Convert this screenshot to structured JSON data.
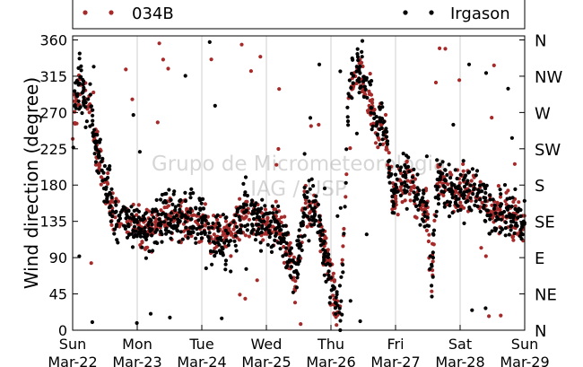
{
  "chart_data": {
    "type": "scatter",
    "title": "",
    "xlabel": "",
    "ylabel": "Wind direction (degree)",
    "ylim": [
      0,
      365
    ],
    "yticks": [
      0,
      45,
      90,
      135,
      180,
      225,
      270,
      315,
      360
    ],
    "xlim": [
      0,
      7
    ],
    "x_unit": "days from Sun Mar-22",
    "xtick_labels": [
      {
        "day": "Sun",
        "date": "Mar-22"
      },
      {
        "day": "Mon",
        "date": "Mar-23"
      },
      {
        "day": "Tue",
        "date": "Mar-24"
      },
      {
        "day": "Wed",
        "date": "Mar-25"
      },
      {
        "day": "Thu",
        "date": "Mar-26"
      },
      {
        "day": "Fri",
        "date": "Mar-27"
      },
      {
        "day": "Sat",
        "date": "Mar-28"
      },
      {
        "day": "Sun",
        "date": "Mar-29"
      }
    ],
    "right_axis_labels": [
      {
        "value": 0,
        "label": "N"
      },
      {
        "value": 45,
        "label": "NE"
      },
      {
        "value": 90,
        "label": "E"
      },
      {
        "value": 135,
        "label": "SE"
      },
      {
        "value": 180,
        "label": "S"
      },
      {
        "value": 225,
        "label": "SW"
      },
      {
        "value": 270,
        "label": "W"
      },
      {
        "value": 315,
        "label": "NW"
      },
      {
        "value": 360,
        "label": "N"
      }
    ],
    "vertical_grid": true,
    "legend_placement": "top",
    "watermark": [
      "Grupo de Micrometeorologia",
      "IAG / USP"
    ],
    "series": [
      {
        "name": "034B",
        "color": "#a52a2a",
        "trend": [
          [
            0.0,
            250
          ],
          [
            0.05,
            290
          ],
          [
            0.1,
            300
          ],
          [
            0.2,
            285
          ],
          [
            0.3,
            270
          ],
          [
            0.35,
            230
          ],
          [
            0.45,
            200
          ],
          [
            0.55,
            165
          ],
          [
            0.65,
            140
          ],
          [
            0.8,
            135
          ],
          [
            1.0,
            132
          ],
          [
            1.2,
            125
          ],
          [
            1.4,
            145
          ],
          [
            1.6,
            138
          ],
          [
            1.8,
            140
          ],
          [
            2.0,
            138
          ],
          [
            2.2,
            118
          ],
          [
            2.4,
            110
          ],
          [
            2.55,
            135
          ],
          [
            2.7,
            145
          ],
          [
            3.0,
            132
          ],
          [
            3.2,
            128
          ],
          [
            3.35,
            95
          ],
          [
            3.45,
            65
          ],
          [
            3.6,
            150
          ],
          [
            3.8,
            140
          ],
          [
            3.95,
            85
          ],
          [
            4.05,
            40
          ],
          [
            4.15,
            22
          ],
          [
            4.28,
            290
          ],
          [
            4.4,
            320
          ],
          [
            4.55,
            300
          ],
          [
            4.7,
            260
          ],
          [
            4.85,
            240
          ],
          [
            4.95,
            160
          ],
          [
            5.05,
            175
          ],
          [
            5.2,
            185
          ],
          [
            5.3,
            170
          ],
          [
            5.4,
            160
          ],
          [
            5.5,
            150
          ],
          [
            5.55,
            60
          ],
          [
            5.65,
            185
          ],
          [
            5.85,
            175
          ],
          [
            6.0,
            170
          ],
          [
            6.2,
            175
          ],
          [
            6.35,
            165
          ],
          [
            6.45,
            145
          ],
          [
            6.6,
            150
          ],
          [
            6.8,
            140
          ],
          [
            7.0,
            135
          ]
        ],
        "spread": 14,
        "points": 900
      },
      {
        "name": "Irgason",
        "color": "#000000",
        "trend": [
          [
            0.0,
            250
          ],
          [
            0.05,
            295
          ],
          [
            0.1,
            305
          ],
          [
            0.2,
            285
          ],
          [
            0.3,
            270
          ],
          [
            0.35,
            235
          ],
          [
            0.45,
            205
          ],
          [
            0.55,
            165
          ],
          [
            0.65,
            140
          ],
          [
            0.8,
            135
          ],
          [
            1.0,
            132
          ],
          [
            1.2,
            122
          ],
          [
            1.4,
            145
          ],
          [
            1.6,
            138
          ],
          [
            1.8,
            140
          ],
          [
            2.0,
            138
          ],
          [
            2.2,
            115
          ],
          [
            2.4,
            105
          ],
          [
            2.55,
            135
          ],
          [
            2.7,
            148
          ],
          [
            3.0,
            132
          ],
          [
            3.2,
            128
          ],
          [
            3.35,
            90
          ],
          [
            3.45,
            60
          ],
          [
            3.6,
            150
          ],
          [
            3.8,
            140
          ],
          [
            3.95,
            80
          ],
          [
            4.05,
            35
          ],
          [
            4.15,
            20
          ],
          [
            4.28,
            300
          ],
          [
            4.4,
            330
          ],
          [
            4.55,
            305
          ],
          [
            4.7,
            260
          ],
          [
            4.85,
            240
          ],
          [
            4.95,
            160
          ],
          [
            5.05,
            180
          ],
          [
            5.2,
            185
          ],
          [
            5.3,
            170
          ],
          [
            5.4,
            160
          ],
          [
            5.5,
            150
          ],
          [
            5.55,
            55
          ],
          [
            5.65,
            185
          ],
          [
            5.85,
            175
          ],
          [
            6.0,
            172
          ],
          [
            6.2,
            178
          ],
          [
            6.35,
            165
          ],
          [
            6.45,
            145
          ],
          [
            6.6,
            150
          ],
          [
            6.8,
            140
          ],
          [
            7.0,
            135
          ]
        ],
        "spread": 16,
        "points": 1100
      }
    ]
  }
}
